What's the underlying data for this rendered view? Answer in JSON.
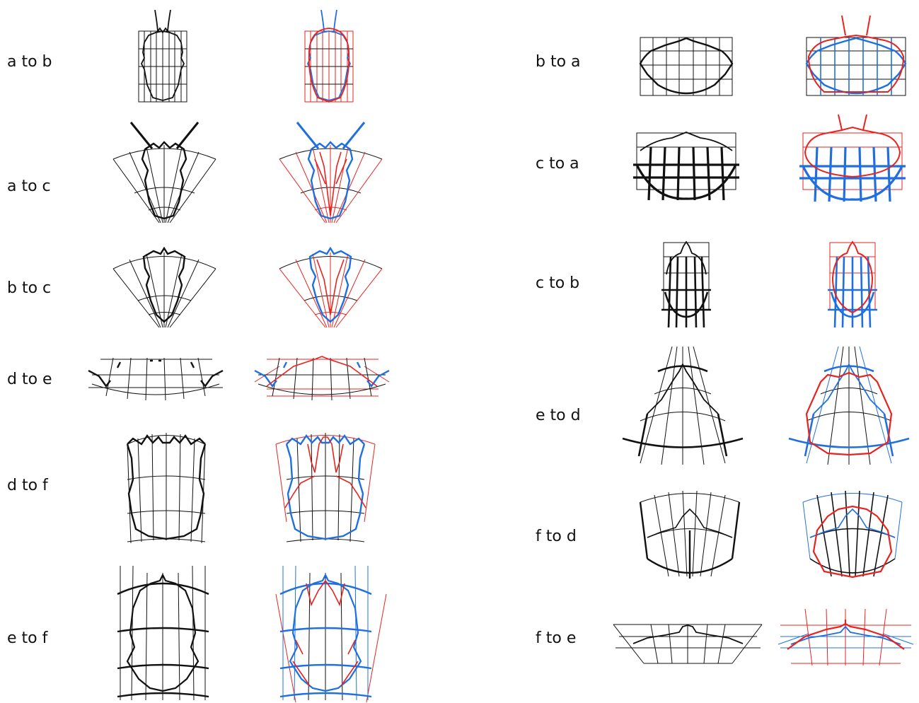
{
  "figure": {
    "panels": [
      {
        "label": "a to b"
      },
      {
        "label": "a to c"
      },
      {
        "label": "b to c"
      },
      {
        "label": "d to e"
      },
      {
        "label": "d to f"
      },
      {
        "label": "e to f"
      },
      {
        "label": "b to a"
      },
      {
        "label": "c to a"
      },
      {
        "label": "c to b"
      },
      {
        "label": "e to d"
      },
      {
        "label": "f to d"
      },
      {
        "label": "f to e"
      }
    ],
    "colors": {
      "ink": "#111111",
      "overlay_red": "#e8231f",
      "overlay_blue": "#1f6fe0"
    }
  }
}
